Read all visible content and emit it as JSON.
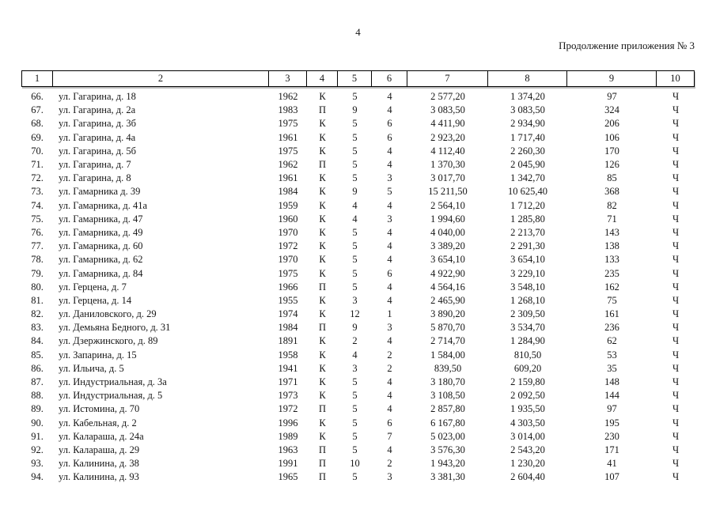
{
  "page": {
    "number": "4",
    "continuation_note": "Продолжение приложения № 3"
  },
  "table": {
    "columns": [
      "1",
      "2",
      "3",
      "4",
      "5",
      "6",
      "7",
      "8",
      "9",
      "10"
    ],
    "rows": [
      [
        "66.",
        "ул. Гагарина, д. 18",
        "1962",
        "К",
        "5",
        "4",
        "2 577,20",
        "1 374,20",
        "97",
        "Ч"
      ],
      [
        "67.",
        "ул. Гагарина, д. 2а",
        "1983",
        "П",
        "9",
        "4",
        "3 083,50",
        "3 083,50",
        "324",
        "Ч"
      ],
      [
        "68.",
        "ул. Гагарина, д. 3б",
        "1975",
        "К",
        "5",
        "6",
        "4 411,90",
        "2 934,90",
        "206",
        "Ч"
      ],
      [
        "69.",
        "ул. Гагарина, д. 4а",
        "1961",
        "К",
        "5",
        "6",
        "2 923,20",
        "1 717,40",
        "106",
        "Ч"
      ],
      [
        "70.",
        "ул. Гагарина, д. 5б",
        "1975",
        "К",
        "5",
        "4",
        "4 112,40",
        "2 260,30",
        "170",
        "Ч"
      ],
      [
        "71.",
        "ул. Гагарина, д. 7",
        "1962",
        "П",
        "5",
        "4",
        "1 370,30",
        "2 045,90",
        "126",
        "Ч"
      ],
      [
        "72.",
        "ул. Гагарина, д. 8",
        "1961",
        "К",
        "5",
        "3",
        "3 017,70",
        "1 342,70",
        "85",
        "Ч"
      ],
      [
        "73.",
        "ул. Гамарника д. 39",
        "1984",
        "К",
        "9",
        "5",
        "15 211,50",
        "10 625,40",
        "368",
        "Ч"
      ],
      [
        "74.",
        "ул. Гамарника, д. 41а",
        "1959",
        "К",
        "4",
        "4",
        "2 564,10",
        "1 712,20",
        "82",
        "Ч"
      ],
      [
        "75.",
        "ул. Гамарника, д. 47",
        "1960",
        "К",
        "4",
        "3",
        "1 994,60",
        "1 285,80",
        "71",
        "Ч"
      ],
      [
        "76.",
        "ул. Гамарника, д. 49",
        "1970",
        "К",
        "5",
        "4",
        "4 040,00",
        "2 213,70",
        "143",
        "Ч"
      ],
      [
        "77.",
        "ул. Гамарника, д. 60",
        "1972",
        "К",
        "5",
        "4",
        "3 389,20",
        "2 291,30",
        "138",
        "Ч"
      ],
      [
        "78.",
        "ул. Гамарника, д. 62",
        "1970",
        "К",
        "5",
        "4",
        "3 654,10",
        "3 654,10",
        "133",
        "Ч"
      ],
      [
        "79.",
        "ул. Гамарника, д. 84",
        "1975",
        "К",
        "5",
        "6",
        "4 922,90",
        "3 229,10",
        "235",
        "Ч"
      ],
      [
        "80.",
        "ул. Герцена, д. 7",
        "1966",
        "П",
        "5",
        "4",
        "4 564,16",
        "3 548,10",
        "162",
        "Ч"
      ],
      [
        "81.",
        "ул. Герцена, д. 14",
        "1955",
        "К",
        "3",
        "4",
        "2 465,90",
        "1 268,10",
        "75",
        "Ч"
      ],
      [
        "82.",
        "ул. Даниловского, д. 29",
        "1974",
        "К",
        "12",
        "1",
        "3 890,20",
        "2 309,50",
        "161",
        "Ч"
      ],
      [
        "83.",
        "ул. Демьяна Бедного, д. 31",
        "1984",
        "П",
        "9",
        "3",
        "5 870,70",
        "3 534,70",
        "236",
        "Ч"
      ],
      [
        "84.",
        "ул. Дзержинского, д. 89",
        "1891",
        "К",
        "2",
        "4",
        "2 714,70",
        "1 284,90",
        "62",
        "Ч"
      ],
      [
        "85.",
        "ул. Запарина, д. 15",
        "1958",
        "К",
        "4",
        "2",
        "1 584,00",
        "810,50",
        "53",
        "Ч"
      ],
      [
        "86.",
        "ул. Ильича, д. 5",
        "1941",
        "К",
        "3",
        "2",
        "839,50",
        "609,20",
        "35",
        "Ч"
      ],
      [
        "87.",
        "ул. Индустриальная, д. 3а",
        "1971",
        "К",
        "5",
        "4",
        "3 180,70",
        "2 159,80",
        "148",
        "Ч"
      ],
      [
        "88.",
        "ул. Индустриальная, д. 5",
        "1973",
        "К",
        "5",
        "4",
        "3 108,50",
        "2 092,50",
        "144",
        "Ч"
      ],
      [
        "89.",
        "ул. Истомина, д. 70",
        "1972",
        "П",
        "5",
        "4",
        "2 857,80",
        "1 935,50",
        "97",
        "Ч"
      ],
      [
        "90.",
        "ул. Кабельная, д. 2",
        "1996",
        "К",
        "5",
        "6",
        "6 167,80",
        "4 303,50",
        "195",
        "Ч"
      ],
      [
        "91.",
        "ул. Калараша, д. 24а",
        "1989",
        "К",
        "5",
        "7",
        "5 023,00",
        "3 014,00",
        "230",
        "Ч"
      ],
      [
        "92.",
        "ул. Калараша, д. 29",
        "1963",
        "П",
        "5",
        "4",
        "3 576,30",
        "2 543,20",
        "171",
        "Ч"
      ],
      [
        "93.",
        "ул. Калинина, д. 38",
        "1991",
        "П",
        "10",
        "2",
        "1 943,20",
        "1 230,20",
        "41",
        "Ч"
      ],
      [
        "94.",
        "ул. Калинина, д. 93",
        "1965",
        "П",
        "5",
        "3",
        "3 381,30",
        "2 604,40",
        "107",
        "Ч"
      ]
    ]
  }
}
